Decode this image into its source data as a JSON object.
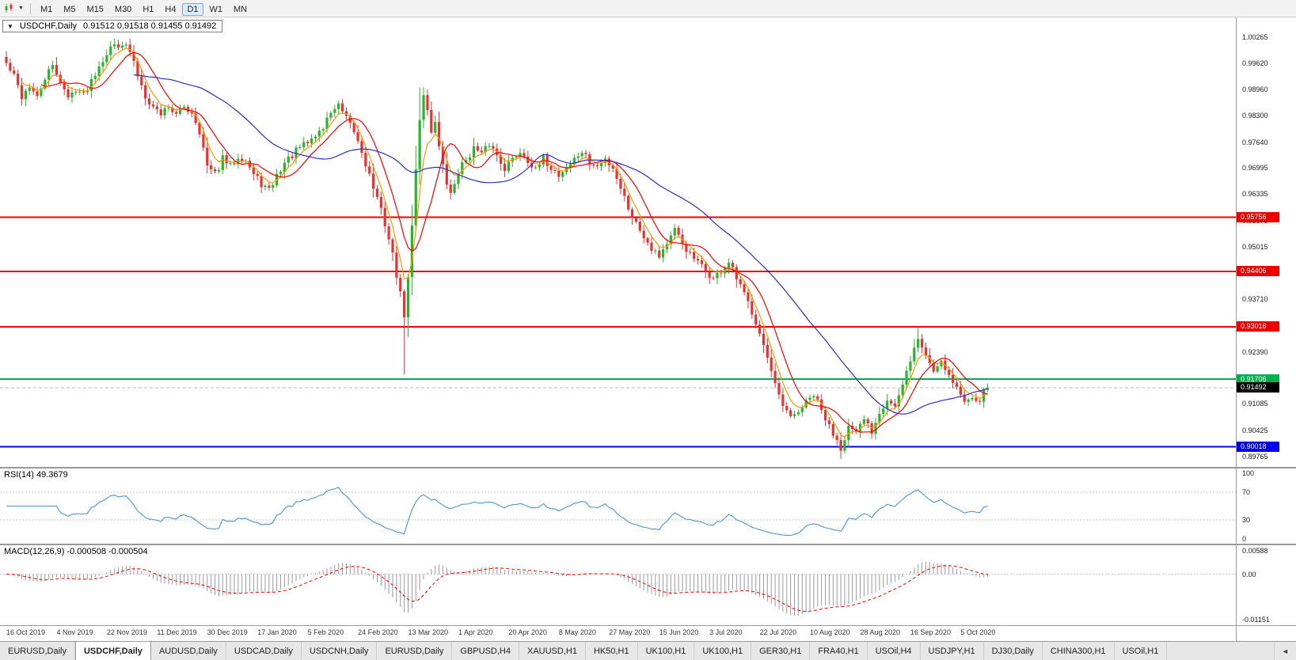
{
  "toolbar": {
    "chart_type_icon": "candlestick-chart",
    "dropdown_icon": "▼",
    "timeframes": [
      "M1",
      "M5",
      "M15",
      "M30",
      "H1",
      "H4",
      "D1",
      "W1",
      "MN"
    ],
    "active_timeframe": "D1"
  },
  "chart_window": {
    "collapse_icon": "▼",
    "title_symbol": "USDCHF,Daily",
    "title_ohlc": "0.91512 0.91518 0.91455 0.91492"
  },
  "chart_data": {
    "type": "candlestick",
    "symbol": "USDCHF",
    "period": "Daily",
    "ohlc_display": {
      "open": "0.91512",
      "high": "0.91518",
      "low": "0.91455",
      "close": "0.91492"
    },
    "x_labels": [
      "16 Oct 2019",
      "4 Nov 2019",
      "22 Nov 2019",
      "11 Dec 2019",
      "30 Dec 2019",
      "17 Jan 2020",
      "5 Feb 2020",
      "24 Feb 2020",
      "13 Mar 2020",
      "1 Apr 2020",
      "20 Apr 2020",
      "8 May 2020",
      "27 May 2020",
      "15 Jun 2020",
      "3 Jul 2020",
      "22 Jul 2020",
      "10 Aug 2020",
      "28 Aug 2020",
      "16 Sep 2020",
      "5 Oct 2020"
    ],
    "x_label_step_candles": 13,
    "main": {
      "ylim": [
        0.8951,
        1.0076
      ],
      "axis_labels": [
        "1.00265",
        "0.99620",
        "0.98960",
        "0.98300",
        "0.97640",
        "0.96995",
        "0.96335",
        "0.95675",
        "0.95015",
        "0.94370",
        "0.93710",
        "0.93050",
        "0.92390",
        "0.91730",
        "0.91085",
        "0.90425",
        "0.89765"
      ],
      "levels": [
        {
          "price": 0.95756,
          "label": "0.95756",
          "color": "#ee0000",
          "width": 2
        },
        {
          "price": 0.94406,
          "label": "0.94406",
          "color": "#ee0000",
          "width": 2
        },
        {
          "price": 0.93016,
          "label": "0.93016",
          "color": "#ee0000",
          "width": 2
        },
        {
          "price": 0.91706,
          "label": "0.91706",
          "color": "#00b050",
          "width": 2
        },
        {
          "price": 0.90018,
          "label": "0.90018",
          "color": "#0000ee",
          "width": 2
        }
      ],
      "current_price": {
        "price": 0.91492,
        "label": "0.91492",
        "bg": "#000000"
      },
      "colors": {
        "up": "#2bb32b",
        "down": "#e63232"
      },
      "moving_averages": [
        {
          "type": "ema",
          "period": 5,
          "color": "#ff9900"
        },
        {
          "type": "sma",
          "period": 10,
          "color": "#ff0000"
        },
        {
          "type": "sma",
          "period": 34,
          "color": "#2d2dc9"
        }
      ],
      "candles": {
        "count": 255,
        "seed": 42,
        "noise": 0.001,
        "last_close": 0.91492,
        "anchors": [
          [
            0,
            0.996
          ],
          [
            2,
            0.9928
          ],
          [
            4,
            0.9878
          ],
          [
            6,
            0.9905
          ],
          [
            8,
            0.9872
          ],
          [
            10,
            0.9925
          ],
          [
            12,
            0.9952
          ],
          [
            14,
            0.992
          ],
          [
            16,
            0.9872
          ],
          [
            18,
            0.99
          ],
          [
            20,
            0.9882
          ],
          [
            22,
            0.992
          ],
          [
            24,
            0.9958
          ],
          [
            26,
            0.9988
          ],
          [
            28,
            1.0008
          ],
          [
            30,
            1.0012
          ],
          [
            32,
            0.999
          ],
          [
            34,
            0.9932
          ],
          [
            36,
            0.9882
          ],
          [
            38,
            0.9852
          ],
          [
            40,
            0.9836
          ],
          [
            42,
            0.9856
          ],
          [
            44,
            0.983
          ],
          [
            46,
            0.9852
          ],
          [
            48,
            0.984
          ],
          [
            50,
            0.9792
          ],
          [
            52,
            0.9702
          ],
          [
            54,
            0.9682
          ],
          [
            56,
            0.9722
          ],
          [
            58,
            0.9702
          ],
          [
            60,
            0.973
          ],
          [
            62,
            0.972
          ],
          [
            64,
            0.9682
          ],
          [
            66,
            0.966
          ],
          [
            68,
            0.9641
          ],
          [
            70,
            0.968
          ],
          [
            72,
            0.9712
          ],
          [
            74,
            0.9731
          ],
          [
            76,
            0.975
          ],
          [
            78,
            0.9762
          ],
          [
            80,
            0.9781
          ],
          [
            82,
            0.98
          ],
          [
            84,
            0.9841
          ],
          [
            86,
            0.9854
          ],
          [
            88,
            0.982
          ],
          [
            90,
            0.979
          ],
          [
            92,
            0.9741
          ],
          [
            94,
            0.9681
          ],
          [
            96,
            0.9621
          ],
          [
            98,
            0.9561
          ],
          [
            100,
            0.9481
          ],
          [
            101,
            0.9432
          ],
          [
            102,
            0.9381
          ],
          [
            103,
            0.9332
          ],
          [
            104,
            0.9422
          ],
          [
            105,
            0.9551
          ],
          [
            106,
            0.9701
          ],
          [
            107,
            0.9821
          ],
          [
            108,
            0.9888
          ],
          [
            109,
            0.9841
          ],
          [
            110,
            0.9791
          ],
          [
            111,
            0.982
          ],
          [
            112,
            0.9751
          ],
          [
            113,
            0.9701
          ],
          [
            114,
            0.9661
          ],
          [
            115,
            0.9631
          ],
          [
            116,
            0.9661
          ],
          [
            117,
            0.9691
          ],
          [
            119,
            0.9721
          ],
          [
            121,
            0.9749
          ],
          [
            123,
            0.9731
          ],
          [
            125,
            0.976
          ],
          [
            127,
            0.9731
          ],
          [
            129,
            0.9701
          ],
          [
            131,
            0.9721
          ],
          [
            133,
            0.9741
          ],
          [
            135,
            0.9721
          ],
          [
            137,
            0.9691
          ],
          [
            139,
            0.9721
          ],
          [
            141,
            0.9701
          ],
          [
            143,
            0.9681
          ],
          [
            145,
            0.9701
          ],
          [
            147,
            0.9721
          ],
          [
            149,
            0.974
          ],
          [
            151,
            0.9711
          ],
          [
            153,
            0.9701
          ],
          [
            155,
            0.9721
          ],
          [
            157,
            0.9701
          ],
          [
            159,
            0.9651
          ],
          [
            161,
            0.9601
          ],
          [
            163,
            0.9561
          ],
          [
            165,
            0.9531
          ],
          [
            167,
            0.9501
          ],
          [
            169,
            0.9481
          ],
          [
            171,
            0.9511
          ],
          [
            173,
            0.9541
          ],
          [
            175,
            0.9511
          ],
          [
            177,
            0.9481
          ],
          [
            179,
            0.9461
          ],
          [
            181,
            0.9441
          ],
          [
            183,
            0.9421
          ],
          [
            185,
            0.9441
          ],
          [
            187,
            0.9461
          ],
          [
            189,
            0.9421
          ],
          [
            191,
            0.9381
          ],
          [
            193,
            0.9341
          ],
          [
            195,
            0.9291
          ],
          [
            197,
            0.9221
          ],
          [
            199,
            0.9151
          ],
          [
            201,
            0.9101
          ],
          [
            203,
            0.9071
          ],
          [
            205,
            0.9091
          ],
          [
            207,
            0.9111
          ],
          [
            209,
            0.9131
          ],
          [
            211,
            0.9091
          ],
          [
            213,
            0.9051
          ],
          [
            215,
            0.9021
          ],
          [
            216,
            0.9001
          ],
          [
            218,
            0.9051
          ],
          [
            220,
            0.9031
          ],
          [
            222,
            0.9071
          ],
          [
            224,
            0.9041
          ],
          [
            226,
            0.9091
          ],
          [
            228,
            0.9121
          ],
          [
            230,
            0.9101
          ],
          [
            232,
            0.9151
          ],
          [
            234,
            0.9221
          ],
          [
            236,
            0.9271
          ],
          [
            238,
            0.9231
          ],
          [
            240,
            0.9191
          ],
          [
            242,
            0.9221
          ],
          [
            244,
            0.9181
          ],
          [
            246,
            0.9151
          ],
          [
            248,
            0.9111
          ],
          [
            250,
            0.9131
          ],
          [
            252,
            0.9121
          ],
          [
            254,
            0.9149
          ]
        ],
        "wick_overrides": {
          "28": {
            "high": 1.0023
          },
          "103": {
            "low": 0.9183
          },
          "107": {
            "high": 0.9901
          },
          "216": {
            "low": 0.8997
          },
          "236": {
            "high": 0.9301
          }
        }
      }
    },
    "rsi": {
      "label": "RSI(14) 49.3679",
      "period": 14,
      "value": "49.3679",
      "axis_labels": [
        "100",
        "70",
        "30",
        "0"
      ],
      "levels": [
        70,
        30
      ],
      "ylim": [
        0,
        100
      ],
      "color": "#4f94cd"
    },
    "macd": {
      "label": "MACD(12,26,9) -0.000508 -0.000504",
      "values": "-0.000508 -0.000504",
      "axis_labels": [
        "0.00588",
        "0.00",
        "-0.01151"
      ],
      "ylim": [
        -0.01151,
        0.00588
      ],
      "hist_color": "#9a9a9a",
      "signal_color": "#ff0000"
    }
  },
  "tabbar": {
    "scroll_left_icon": "◄",
    "tabs": [
      {
        "label": "EURUSD,Daily",
        "active": false
      },
      {
        "label": "USDCHF,Daily",
        "active": true
      },
      {
        "label": "AUDUSD,Daily",
        "active": false
      },
      {
        "label": "USDCAD,Daily",
        "active": false
      },
      {
        "label": "USDCNH,Daily",
        "active": false
      },
      {
        "label": "EURUSD,Daily",
        "active": false
      },
      {
        "label": "GBPUSD,H4",
        "active": false
      },
      {
        "label": "XAUUSD,H1",
        "active": false
      },
      {
        "label": "HK50,H1",
        "active": false
      },
      {
        "label": "UK100,H1",
        "active": false
      },
      {
        "label": "UK100,H1",
        "active": false
      },
      {
        "label": "GER30,H1",
        "active": false
      },
      {
        "label": "FRA40,H1",
        "active": false
      },
      {
        "label": "USOil,H4",
        "active": false
      },
      {
        "label": "USDJPY,H1",
        "active": false
      },
      {
        "label": "DJ30,Daily",
        "active": false
      },
      {
        "label": "CHINA300,H1",
        "active": false
      },
      {
        "label": "USOil,H1",
        "active": false
      }
    ]
  }
}
